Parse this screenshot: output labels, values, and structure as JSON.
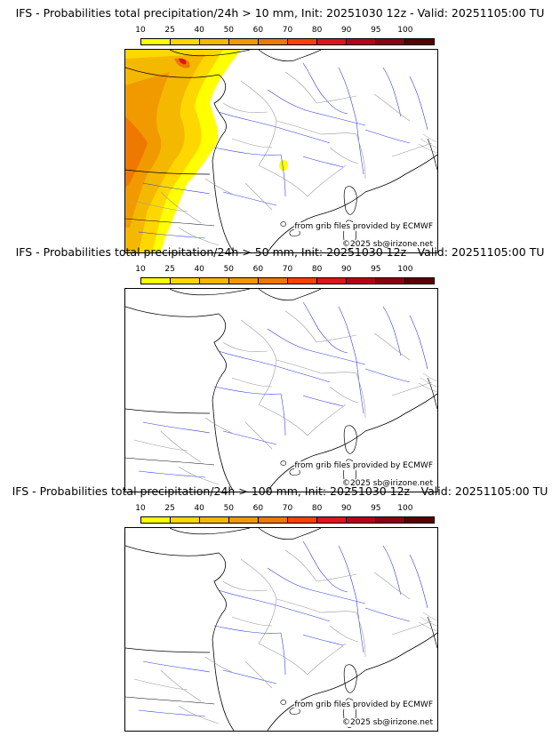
{
  "scale": {
    "ticks": [
      "10",
      "25",
      "40",
      "50",
      "60",
      "70",
      "80",
      "90",
      "95",
      "100"
    ],
    "colors": [
      "#ffff00",
      "#ffd700",
      "#f5b800",
      "#f09a00",
      "#ee7800",
      "#ff4000",
      "#e0141e",
      "#b90019",
      "#8c0014",
      "#5a0000"
    ]
  },
  "panels": [
    {
      "title": "IFS - Probabilities total precipitation/24h > 10 mm, Init: 20251030 12z - Valid: 20251105:00 TU",
      "source_credit": "from grib files provided by ECMWF",
      "copyright": "©2025 sb@irizone.net",
      "precip_field": "coastal-west"
    },
    {
      "title": "IFS - Probabilities total precipitation/24h > 50 mm, Init: 20251030 12z - Valid: 20251105:00 TU",
      "source_credit": "from grib files provided by ECMWF",
      "copyright": "©2025 sb@irizone.net",
      "precip_field": "none"
    },
    {
      "title": "IFS - Probabilities total precipitation/24h > 100 mm, Init: 20251030 12z - Valid: 20251105:00 TU",
      "source_credit": "from grib files provided by ECMWF",
      "copyright": "©2025 sb@irizone.net",
      "precip_field": "none"
    }
  ]
}
